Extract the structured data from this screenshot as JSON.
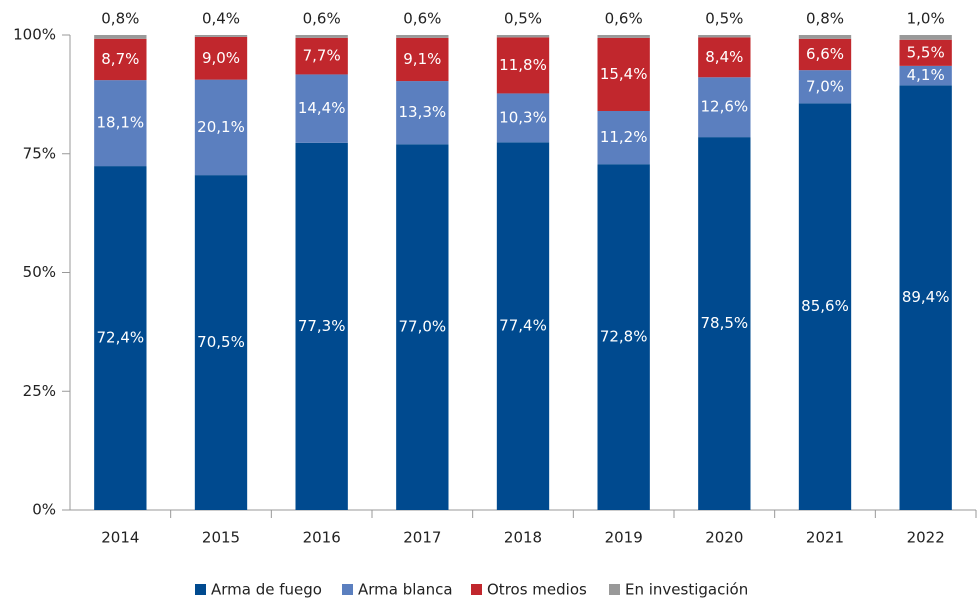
{
  "chart_data": {
    "type": "stacked_bar",
    "categories": [
      "2014",
      "2015",
      "2016",
      "2017",
      "2018",
      "2019",
      "2020",
      "2021",
      "2022"
    ],
    "series": [
      {
        "name": "Arma de fuego",
        "color": "#004a8f",
        "values": [
          72.4,
          70.5,
          77.3,
          77.0,
          77.4,
          72.8,
          78.5,
          85.6,
          89.4
        ],
        "value_labels": [
          "72,4%",
          "70,5%",
          "77,3%",
          "77,0%",
          "77,4%",
          "72,8%",
          "78,5%",
          "85,6%",
          "89,4%"
        ]
      },
      {
        "name": "Arma blanca",
        "color": "#5b7fbf",
        "values": [
          18.1,
          20.1,
          14.4,
          13.3,
          10.3,
          11.2,
          12.6,
          7.0,
          4.1
        ],
        "value_labels": [
          "18,1%",
          "20,1%",
          "14,4%",
          "13,3%",
          "10,3%",
          "11,2%",
          "12,6%",
          "7,0%",
          "4,1%"
        ]
      },
      {
        "name": "Otros medios",
        "color": "#c1272d",
        "values": [
          8.7,
          9.0,
          7.7,
          9.1,
          11.8,
          15.4,
          8.4,
          6.6,
          5.5
        ],
        "value_labels": [
          "8,7%",
          "9,0%",
          "7,7%",
          "9,1%",
          "11,8%",
          "15,4%",
          "8,4%",
          "6,6%",
          "5,5%"
        ]
      },
      {
        "name": "En investigación",
        "color": "#999999",
        "values": [
          0.8,
          0.4,
          0.6,
          0.6,
          0.5,
          0.6,
          0.5,
          0.8,
          1.0
        ],
        "value_labels": [
          "0,8%",
          "0,4%",
          "0,6%",
          "0,6%",
          "0,5%",
          "0,6%",
          "0,5%",
          "0,8%",
          "1,0%"
        ]
      }
    ],
    "ylim": [
      0,
      100
    ],
    "yticks": [
      {
        "value": 0,
        "label": "0%"
      },
      {
        "value": 25,
        "label": "25%"
      },
      {
        "value": 50,
        "label": "50%"
      },
      {
        "value": 75,
        "label": "75%"
      },
      {
        "value": 100,
        "label": "100%"
      }
    ],
    "legend": "bottom"
  }
}
